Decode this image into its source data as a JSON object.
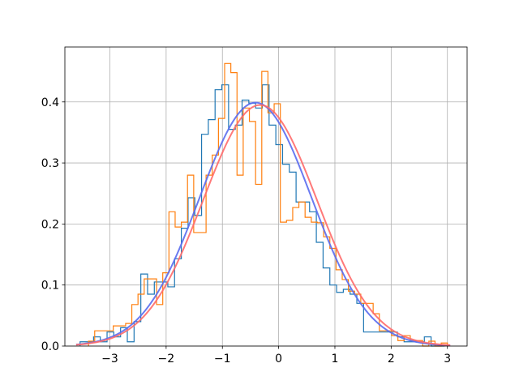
{
  "chart_data": {
    "type": "histogram",
    "title": "",
    "xlabel": "",
    "ylabel": "",
    "xlim": [
      -3.8,
      3.35
    ],
    "ylim": [
      0,
      0.49
    ],
    "grid": true,
    "xticks": [
      -3,
      -2,
      -1,
      0,
      1,
      2,
      3
    ],
    "xtick_labels": [
      "−3",
      "−2",
      "−1",
      "0",
      "1",
      "2",
      "3"
    ],
    "yticks": [
      0,
      0.1,
      0.2,
      0.3,
      0.4
    ],
    "ytick_labels": [
      "0.0",
      "0.1",
      "0.2",
      "0.3",
      "0.4"
    ],
    "series": [
      {
        "kind": "step",
        "color": "#1f77b4",
        "edges": [
          -3.53,
          -3.41,
          -3.29,
          -3.17,
          -3.05,
          -2.93,
          -2.81,
          -2.69,
          -2.57,
          -2.45,
          -2.33,
          -2.21,
          -2.09,
          -1.97,
          -1.85,
          -1.73,
          -1.61,
          -1.49,
          -1.37,
          -1.25,
          -1.13,
          -1.01,
          -0.89,
          -0.77,
          -0.65,
          -0.53,
          -0.41,
          -0.29,
          -0.17,
          -0.05,
          0.07,
          0.19,
          0.31,
          0.43,
          0.55,
          0.67,
          0.79,
          0.91,
          1.03,
          1.15,
          1.27,
          1.39,
          1.51,
          1.63,
          1.75,
          1.87,
          1.99,
          2.11,
          2.23,
          2.35,
          2.47,
          2.59,
          2.71,
          2.83,
          2.95
        ],
        "values": [
          0.007,
          0.007,
          0.015,
          0.007,
          0.023,
          0.015,
          0.03,
          0.007,
          0.04,
          0.118,
          0.085,
          0.105,
          0.105,
          0.097,
          0.143,
          0.193,
          0.243,
          0.214,
          0.347,
          0.371,
          0.42,
          0.428,
          0.355,
          0.362,
          0.403,
          0.398,
          0.39,
          0.428,
          0.362,
          0.33,
          0.298,
          0.285,
          0.236,
          0.236,
          0.22,
          0.17,
          0.128,
          0.1,
          0.088,
          0.093,
          0.085,
          0.07,
          0.023,
          0.023,
          0.023,
          0.023,
          0.023,
          0.015,
          0.007,
          0.007,
          0.007,
          0.015,
          0.0,
          0.0
        ]
      },
      {
        "kind": "step",
        "color": "#ff7f0e",
        "edges": [
          -3.38,
          -3.27,
          -3.16,
          -3.05,
          -2.94,
          -2.83,
          -2.72,
          -2.61,
          -2.5,
          -2.39,
          -2.28,
          -2.17,
          -2.06,
          -1.95,
          -1.84,
          -1.73,
          -1.62,
          -1.51,
          -1.4,
          -1.29,
          -1.18,
          -1.07,
          -0.96,
          -0.85,
          -0.74,
          -0.63,
          -0.52,
          -0.41,
          -0.3,
          -0.19,
          -0.08,
          0.03,
          0.14,
          0.25,
          0.36,
          0.47,
          0.58,
          0.69,
          0.8,
          0.91,
          1.02,
          1.13,
          1.24,
          1.35,
          1.46,
          1.57,
          1.68,
          1.79,
          1.9,
          2.01,
          2.12,
          2.23,
          2.34,
          2.45,
          2.56,
          2.67,
          2.78,
          2.89,
          3.0
        ],
        "values": [
          0.008,
          0.025,
          0.025,
          0.025,
          0.033,
          0.033,
          0.037,
          0.068,
          0.085,
          0.11,
          0.11,
          0.068,
          0.12,
          0.22,
          0.195,
          0.203,
          0.28,
          0.186,
          0.186,
          0.28,
          0.313,
          0.373,
          0.463,
          0.448,
          0.28,
          0.39,
          0.368,
          0.265,
          0.45,
          0.382,
          0.397,
          0.203,
          0.206,
          0.227,
          0.236,
          0.211,
          0.203,
          0.202,
          0.179,
          0.16,
          0.125,
          0.109,
          0.09,
          0.085,
          0.07,
          0.07,
          0.053,
          0.025,
          0.025,
          0.017,
          0.009,
          0.017,
          0.009,
          0.009,
          0.0,
          0.008,
          0.0,
          0.005
        ]
      },
      {
        "kind": "pdf",
        "color": "#5a6cf0",
        "mean": -0.41,
        "std": 1.0,
        "x_range": [
          -3.6,
          3.05
        ]
      },
      {
        "kind": "pdf",
        "color": "#ff6a6a",
        "mean": -0.33,
        "std": 1.01,
        "x_range": [
          -3.6,
          3.05
        ]
      }
    ]
  }
}
